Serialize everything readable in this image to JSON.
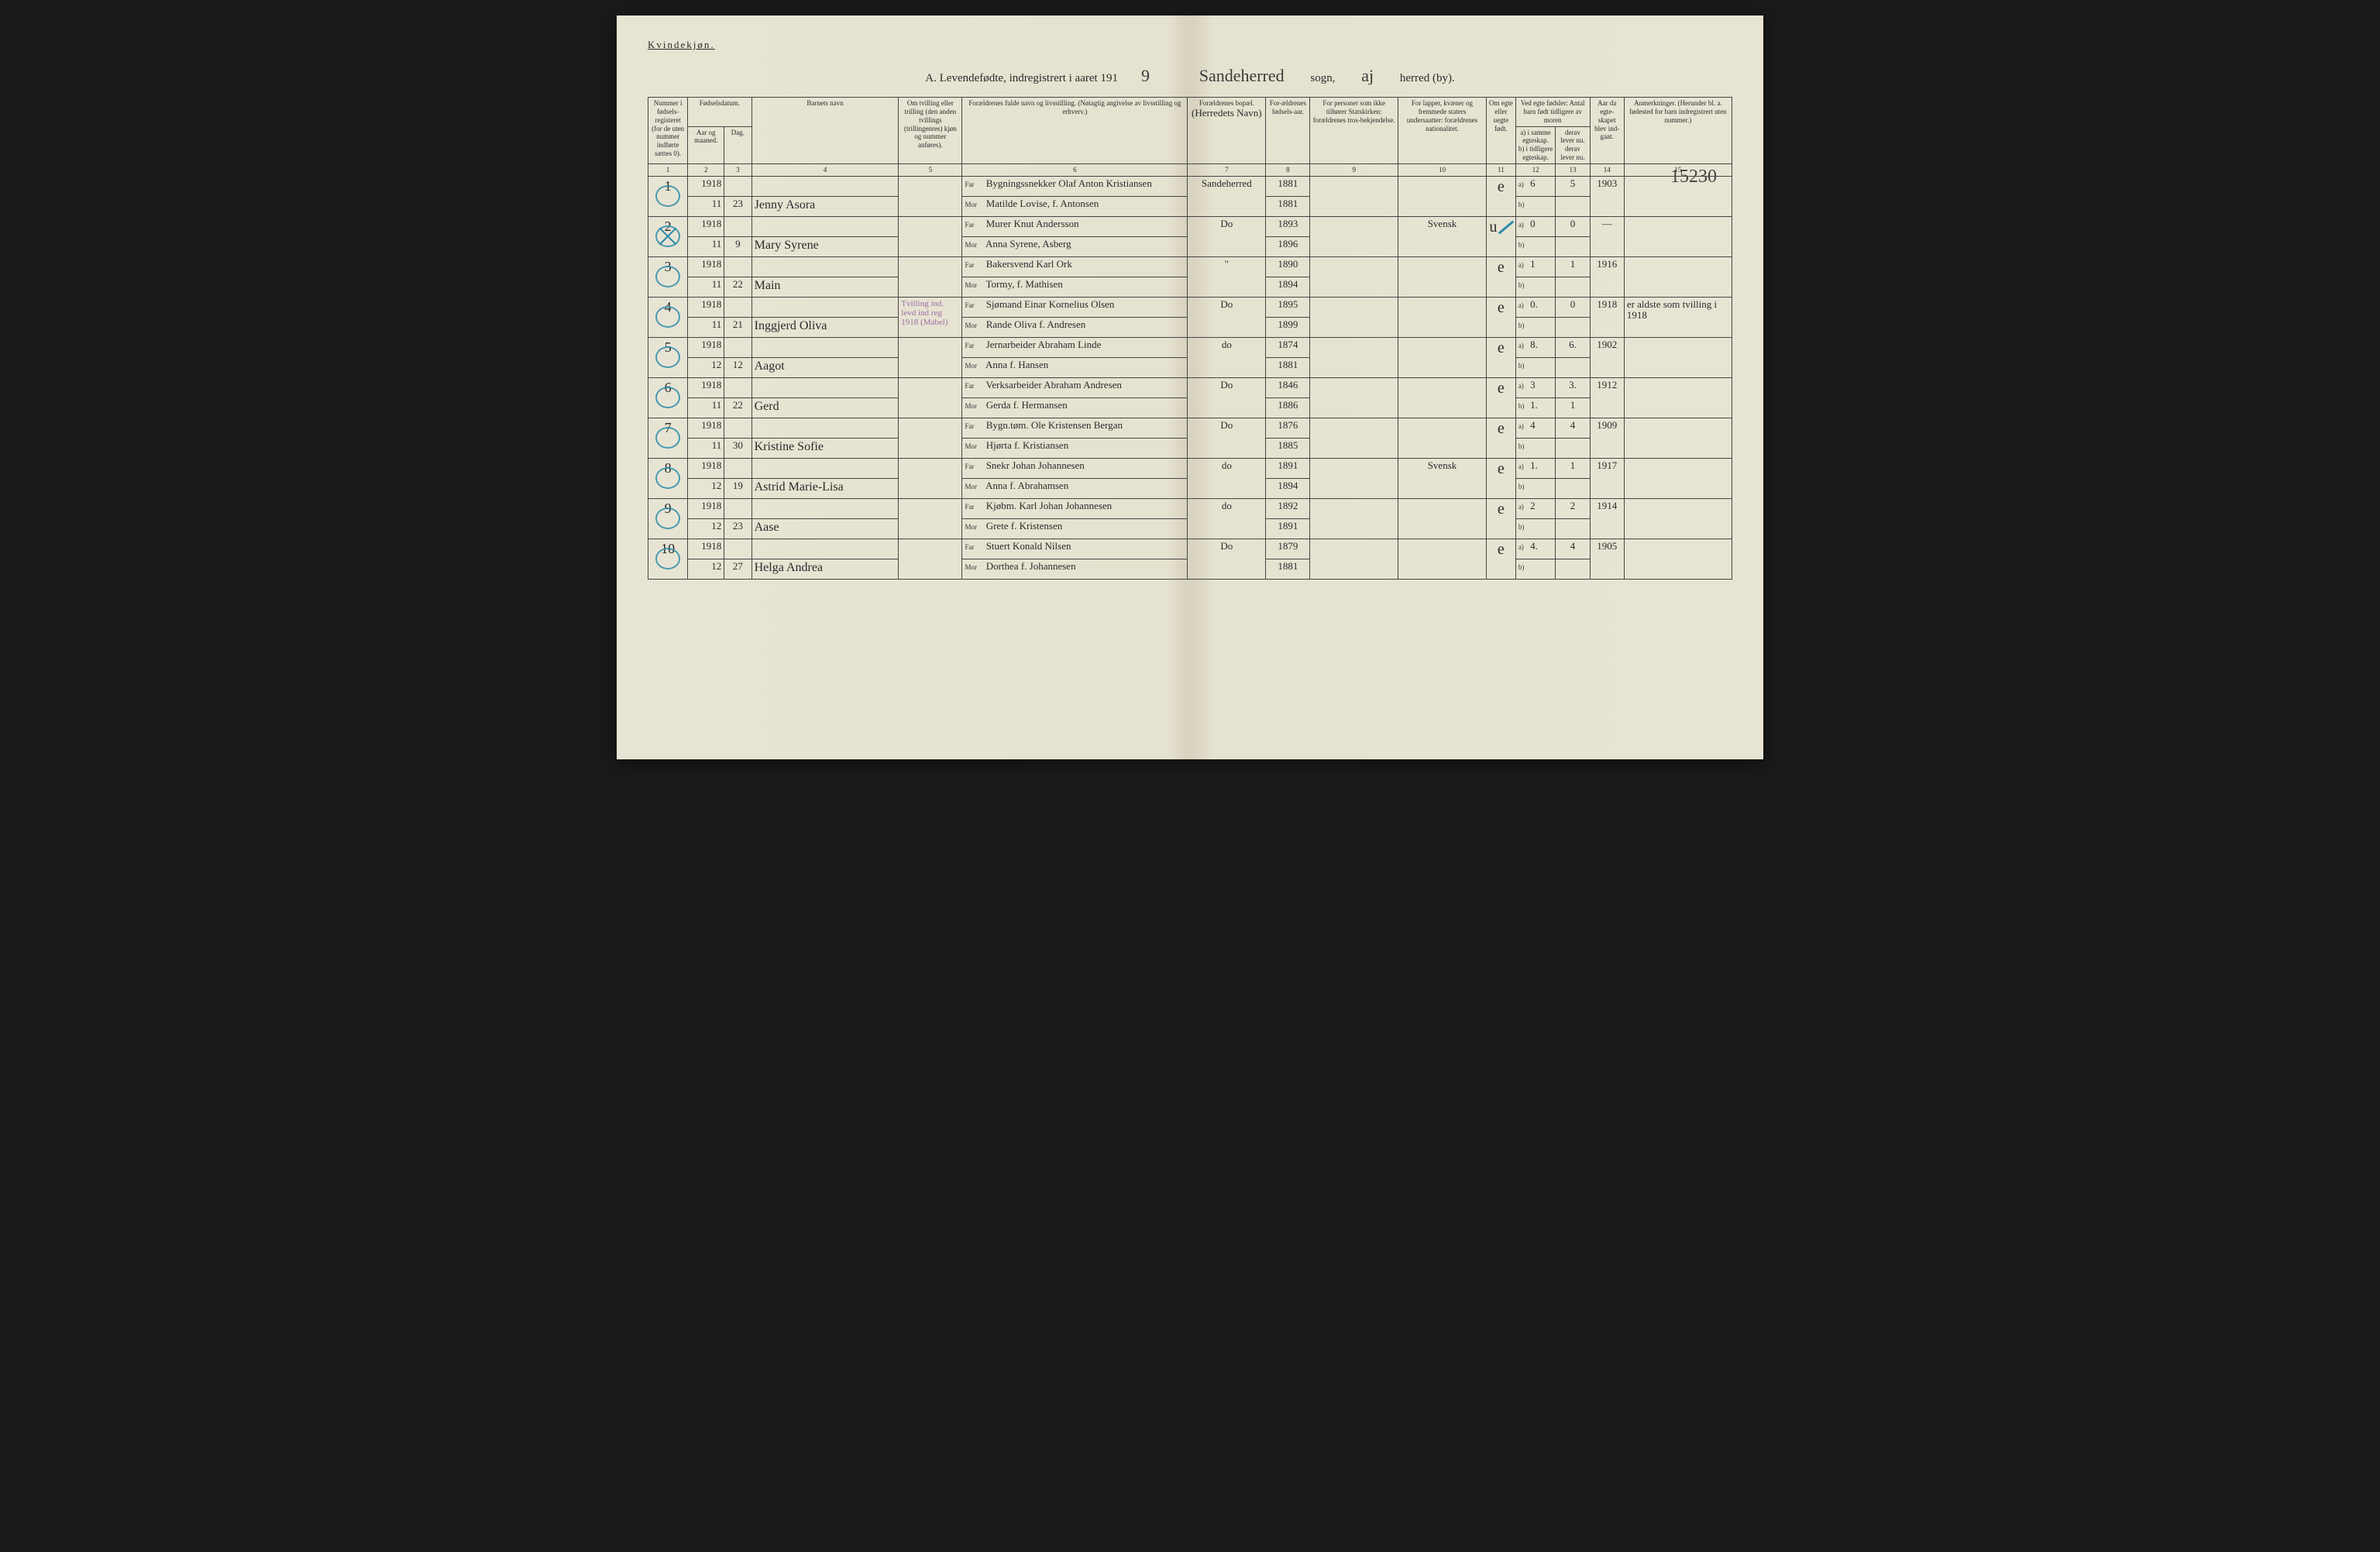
{
  "header": {
    "gender_label": "Kvindekjøn.",
    "title_prefix": "A. Levendefødte, indregistrert i aaret 191",
    "year_suffix": "9",
    "sogn_label": "sogn,",
    "sogn_value": "Sandeherred",
    "herred_label": "herred (by).",
    "herred_value": "aj"
  },
  "columns": {
    "c1": "Nummer i fødsels-registeret (for de uten nummer indførte sættes 0).",
    "c2_3": "Fødselsdatum.",
    "c2": "Aar og maaned.",
    "c3": "Dag.",
    "c4": "Barnets navn",
    "c5": "Om tvilling eller trilling (den anden tvillings (trillingenres) kjøn og nummer anføres).",
    "c6": "Forældrenes fulde navn og livsstilling. (Nøiagtig angivelse av livsstilling og erhverv.)",
    "c7": "Forældrenes bopæl.",
    "c7_note": "(Herredets Navn)",
    "c8": "For-ældrenes fødsels-aar.",
    "c9": "For personer som ikke tilhører Statskirken: forældrenes tros-bekjendelse.",
    "c10": "For lapper, kvæner og fremmede staters undersaatter: forældrenes nationalitet.",
    "c11": "Om egte eller uegte født.",
    "c12_13": "Ved egte fødsler: Antal barn født tidligere av moren",
    "c12a": "a) i samme egteskap.",
    "c12b": "b) i tidligere egteskap.",
    "c13a": "derav lever nu.",
    "c13b": "derav lever nu.",
    "c14": "Aar da egte-skapet blev ind-gaat.",
    "c15": "Anmerkninger. (Herunder bl. a. fødested for barn indregistrert uten nummer.)"
  },
  "colnums": [
    "1",
    "2",
    "3",
    "4",
    "5",
    "6",
    "7",
    "8",
    "9",
    "10",
    "11",
    "12",
    "13",
    "14",
    "15"
  ],
  "margin_note": "15230",
  "rows": [
    {
      "num": "1",
      "crossed": false,
      "year": "1918",
      "month": "11",
      "day": "23",
      "name": "Jenny Asora",
      "twin": "",
      "far": "Bygningssnekker Olaf Anton Kristiansen",
      "mor": "Matilde Lovise, f. Antonsen",
      "bopael": "Sandeherred",
      "far_aar": "1881",
      "mor_aar": "1881",
      "c9": "",
      "c10": "",
      "egte": "e",
      "c12a": "6",
      "c12b": "",
      "c13a": "5",
      "c13b": "",
      "c14": "1903",
      "c15": ""
    },
    {
      "num": "2",
      "crossed": true,
      "year": "1918",
      "month": "11",
      "day": "9",
      "name": "Mary Syrene",
      "twin": "",
      "far": "Murer Knut Andersson",
      "mor": "Anna Syrene, Asberg",
      "bopael": "Do",
      "far_aar": "1893",
      "mor_aar": "1896",
      "c9": "",
      "c10": "Svensk",
      "egte": "u",
      "c12a": "0",
      "c12b": "",
      "c13a": "0",
      "c13b": "",
      "c14": "—",
      "c15": ""
    },
    {
      "num": "3",
      "crossed": false,
      "year": "1918",
      "month": "11",
      "day": "22",
      "name": "Main",
      "twin": "",
      "far": "Bakersvend Karl Ork",
      "mor": "Tormy, f. Mathisen",
      "bopael": "\"",
      "far_aar": "1890",
      "mor_aar": "1894",
      "c9": "",
      "c10": "",
      "egte": "e",
      "c12a": "1",
      "c12b": "",
      "c13a": "1",
      "c13b": "",
      "c14": "1916",
      "c15": ""
    },
    {
      "num": "4",
      "crossed": false,
      "year": "1918",
      "month": "11",
      "day": "21",
      "name": "Inggjerd Oliva",
      "twin": "Tvilling ind. levd ind reg 1918 (Mabel)",
      "far": "Sjømand Einar Kornelius Olsen",
      "mor": "Rande Oliva f. Andresen",
      "bopael": "Do",
      "far_aar": "1895",
      "mor_aar": "1899",
      "c9": "",
      "c10": "",
      "egte": "e",
      "c12a": "0.",
      "c12b": "",
      "c13a": "0",
      "c13b": "",
      "c14": "1918",
      "c15": "er aldste som tvilling i 1918"
    },
    {
      "num": "5",
      "crossed": false,
      "year": "1918",
      "month": "12",
      "day": "12",
      "name": "Aagot",
      "twin": "",
      "far": "Jernarbeider Abraham Linde",
      "mor": "Anna f. Hansen",
      "bopael": "do",
      "far_aar": "1874",
      "mor_aar": "1881",
      "c9": "",
      "c10": "",
      "egte": "e",
      "c12a": "8.",
      "c12b": "",
      "c13a": "6.",
      "c13b": "",
      "c14": "1902",
      "c15": ""
    },
    {
      "num": "6",
      "crossed": false,
      "year": "1918",
      "month": "11",
      "day": "22",
      "name": "Gerd",
      "twin": "",
      "far": "Verksarbeider Abraham Andresen",
      "mor": "Gerda f. Hermansen",
      "bopael": "Do",
      "far_aar": "1846",
      "mor_aar": "1886",
      "c9": "",
      "c10": "",
      "egte": "e",
      "c12a": "3",
      "c12b": "1.",
      "c13a": "3.",
      "c13b": "1",
      "c14": "1912",
      "c15": ""
    },
    {
      "num": "7",
      "crossed": false,
      "year": "1918",
      "month": "11",
      "day": "30",
      "name": "Kristine Sofie",
      "twin": "",
      "far": "Bygn.tøm. Ole Kristensen Bergan",
      "mor": "Hjørta f. Kristiansen",
      "bopael": "Do",
      "far_aar": "1876",
      "mor_aar": "1885",
      "c9": "",
      "c10": "",
      "egte": "e",
      "c12a": "4",
      "c12b": "",
      "c13a": "4",
      "c13b": "",
      "c14": "1909",
      "c15": ""
    },
    {
      "num": "8",
      "crossed": false,
      "year": "1918",
      "month": "12",
      "day": "19",
      "name": "Astrid Marie-Lisa",
      "twin": "",
      "far": "Snekr Johan Johannesen",
      "mor": "Anna f. Abrahamsen",
      "bopael": "do",
      "far_aar": "1891",
      "mor_aar": "1894",
      "c9": "",
      "c10": "Svensk",
      "egte": "e",
      "c12a": "1.",
      "c12b": "",
      "c13a": "1",
      "c13b": "",
      "c14": "1917",
      "c15": ""
    },
    {
      "num": "9",
      "crossed": false,
      "year": "1918",
      "month": "12",
      "day": "23",
      "name": "Aase",
      "twin": "",
      "far": "Kjøbm. Karl Johan Johannesen",
      "mor": "Grete f. Kristensen",
      "bopael": "do",
      "far_aar": "1892",
      "mor_aar": "1891",
      "c9": "",
      "c10": "",
      "egte": "e",
      "c12a": "2",
      "c12b": "",
      "c13a": "2",
      "c13b": "",
      "c14": "1914",
      "c15": ""
    },
    {
      "num": "10",
      "crossed": false,
      "year": "1918",
      "month": "12",
      "day": "27",
      "name": "Helga Andrea",
      "twin": "",
      "far": "Stuert Konald Nilsen",
      "mor": "Dorthea f. Johannesen",
      "bopael": "Do",
      "far_aar": "1879",
      "mor_aar": "1881",
      "c9": "",
      "c10": "",
      "egte": "e",
      "c12a": "4.",
      "c12b": "",
      "c13a": "4",
      "c13b": "",
      "c14": "1905",
      "c15": ""
    }
  ]
}
